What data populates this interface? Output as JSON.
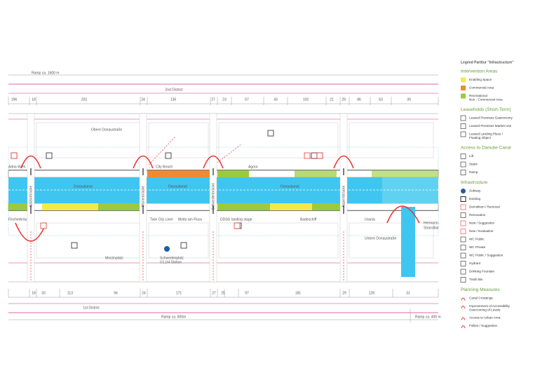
{
  "top": {
    "ramp": "Ramp ca. 1600 m",
    "district": "2nd District",
    "distances": [
      196,
      18,
      202,
      24,
      136,
      27,
      23,
      67,
      43,
      102,
      21,
      29,
      86,
      63,
      39
    ]
  },
  "bottom": {
    "distances": [
      18,
      33,
      113,
      94,
      24,
      171,
      27,
      25,
      97,
      181,
      29,
      126,
      31
    ],
    "district": "1st District",
    "ramp_left": "Ramp ca. 800m",
    "ramp_right": "Ramp ca. 400 m"
  },
  "bridges": [
    "Salztorbrücke",
    "Marienbrücke",
    "Schwedenbrücke",
    "Aspernbrücke"
  ],
  "canal": [
    "Donaukanal",
    "Donaukanal",
    "Donaukanal"
  ],
  "places": {
    "adria": "Adria Wien",
    "city_beach": "City Beach",
    "agora": "Agora",
    "hermann": [
      "Hermann-",
      "Strandbar"
    ],
    "fischer": "Fischerbräu",
    "twin_city": "Twin City Liner",
    "motto": "Motto am Fluss",
    "ddsg": "DDSG landing stage",
    "badeschiff": "Badeschiff",
    "urania": "Urania",
    "station": [
      "Schwedenplatz",
      "U1,U4 Station"
    ]
  },
  "streets": {
    "obere": "Obere Donaustraße",
    "morzin": "Morzinplatz",
    "untere": "Untere Donaustraße"
  },
  "legend": {
    "title": "Legend Partitur \"Infrastructure\"",
    "sections": [
      {
        "heading": "Intervention Areas",
        "items": [
          {
            "lines": [
              "Enabling Space"
            ]
          },
          {
            "lines": [
              "Commercial Area"
            ]
          },
          {
            "lines": [
              "Recreational",
              "Non - Commercial Area"
            ]
          }
        ]
      },
      {
        "heading": "Leaseholds (Short-Term)",
        "items": [
          {
            "lines": [
              "Leased Premises Gastronomy"
            ]
          },
          {
            "lines": [
              "Leased Premises Market Use"
            ]
          },
          {
            "lines": [
              "Leased Landing Place /",
              "Floating Object"
            ]
          }
        ]
      },
      {
        "heading": "Access to Danube Canal",
        "items": [
          {
            "lines": [
              "Lift"
            ]
          },
          {
            "lines": [
              "Stairs"
            ]
          },
          {
            "lines": [
              "Ramp"
            ]
          }
        ]
      },
      {
        "heading": "Infrastructure",
        "items": [
          {
            "lines": [
              "Subway"
            ]
          },
          {
            "lines": [
              "Existing"
            ]
          },
          {
            "lines": [
              "Demolition / Removal"
            ]
          },
          {
            "lines": [
              "Renovation"
            ]
          },
          {
            "lines": [
              "New / Suggestion"
            ]
          },
          {
            "lines": [
              "New / Evaluation"
            ]
          },
          {
            "lines": [
              "WC Public"
            ]
          },
          {
            "lines": [
              "WC Private"
            ]
          },
          {
            "lines": [
              "WC Public / Suggestion"
            ]
          },
          {
            "lines": [
              "Hydrant"
            ]
          },
          {
            "lines": [
              "Drinking Fountain"
            ]
          },
          {
            "lines": [
              "Trash Bin"
            ]
          }
        ]
      },
      {
        "heading": "Planning Measures",
        "items": [
          {
            "lines": [
              "Canal Crossings"
            ]
          },
          {
            "lines": [
              "Improvement of Accessibility",
              "Overcoming of Levels"
            ]
          },
          {
            "lines": [
              "Access to Urban Area"
            ]
          },
          {
            "lines": [
              "Follies / Suggestion"
            ]
          }
        ]
      }
    ]
  }
}
